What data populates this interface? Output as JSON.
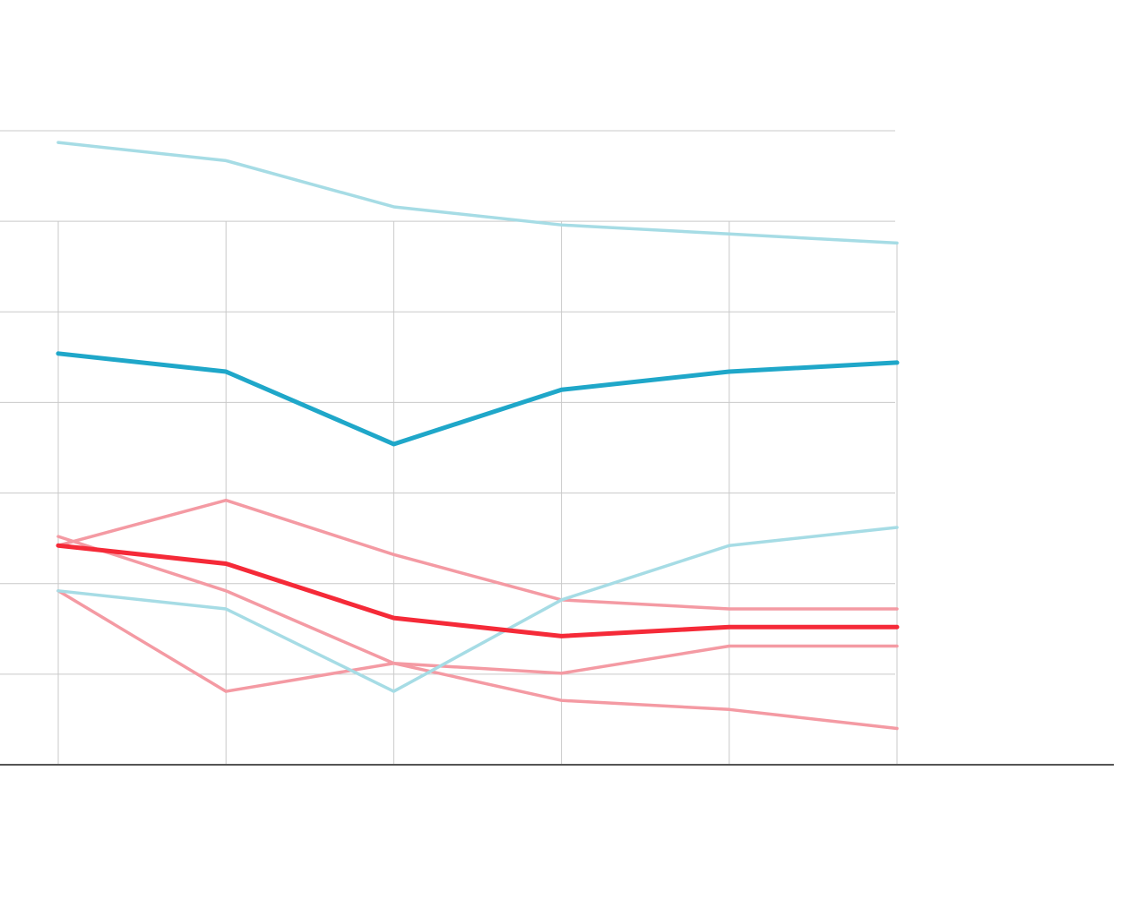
{
  "chart_data": {
    "type": "line",
    "x": [
      1,
      2,
      3,
      4,
      5,
      6
    ],
    "ylim": [
      0,
      7
    ],
    "grid": true,
    "colors": {
      "blue_light": "#a6dce5",
      "blue_dark": "#1fa7c9",
      "red_light": "#f49aa3",
      "red_dark": "#f52a38",
      "grid": "#c9c9c9",
      "axis": "#555555"
    },
    "series": [
      {
        "values": [
          6.87,
          6.67,
          6.16,
          5.96,
          5.86,
          5.76
        ],
        "color": "#a6dce5",
        "emphasis": false
      },
      {
        "values": [
          4.54,
          4.34,
          3.54,
          4.14,
          4.34,
          4.44
        ],
        "color": "#1fa7c9",
        "emphasis": true
      },
      {
        "values": [
          2.42,
          2.92,
          2.32,
          1.82,
          1.72,
          1.72
        ],
        "color": "#f49aa3",
        "emphasis": false
      },
      {
        "values": [
          2.52,
          1.92,
          1.12,
          0.71,
          0.61,
          0.4
        ],
        "color": "#f49aa3",
        "emphasis": false
      },
      {
        "values": [
          1.92,
          0.81,
          1.12,
          1.01,
          1.31,
          1.31
        ],
        "color": "#f49aa3",
        "emphasis": false
      },
      {
        "values": [
          1.92,
          1.72,
          0.81,
          1.82,
          2.42,
          2.62
        ],
        "color": "#a6dce5",
        "emphasis": false
      },
      {
        "values": [
          2.42,
          2.22,
          1.62,
          1.42,
          1.52,
          1.52
        ],
        "color": "#f52a38",
        "emphasis": true
      }
    ]
  }
}
